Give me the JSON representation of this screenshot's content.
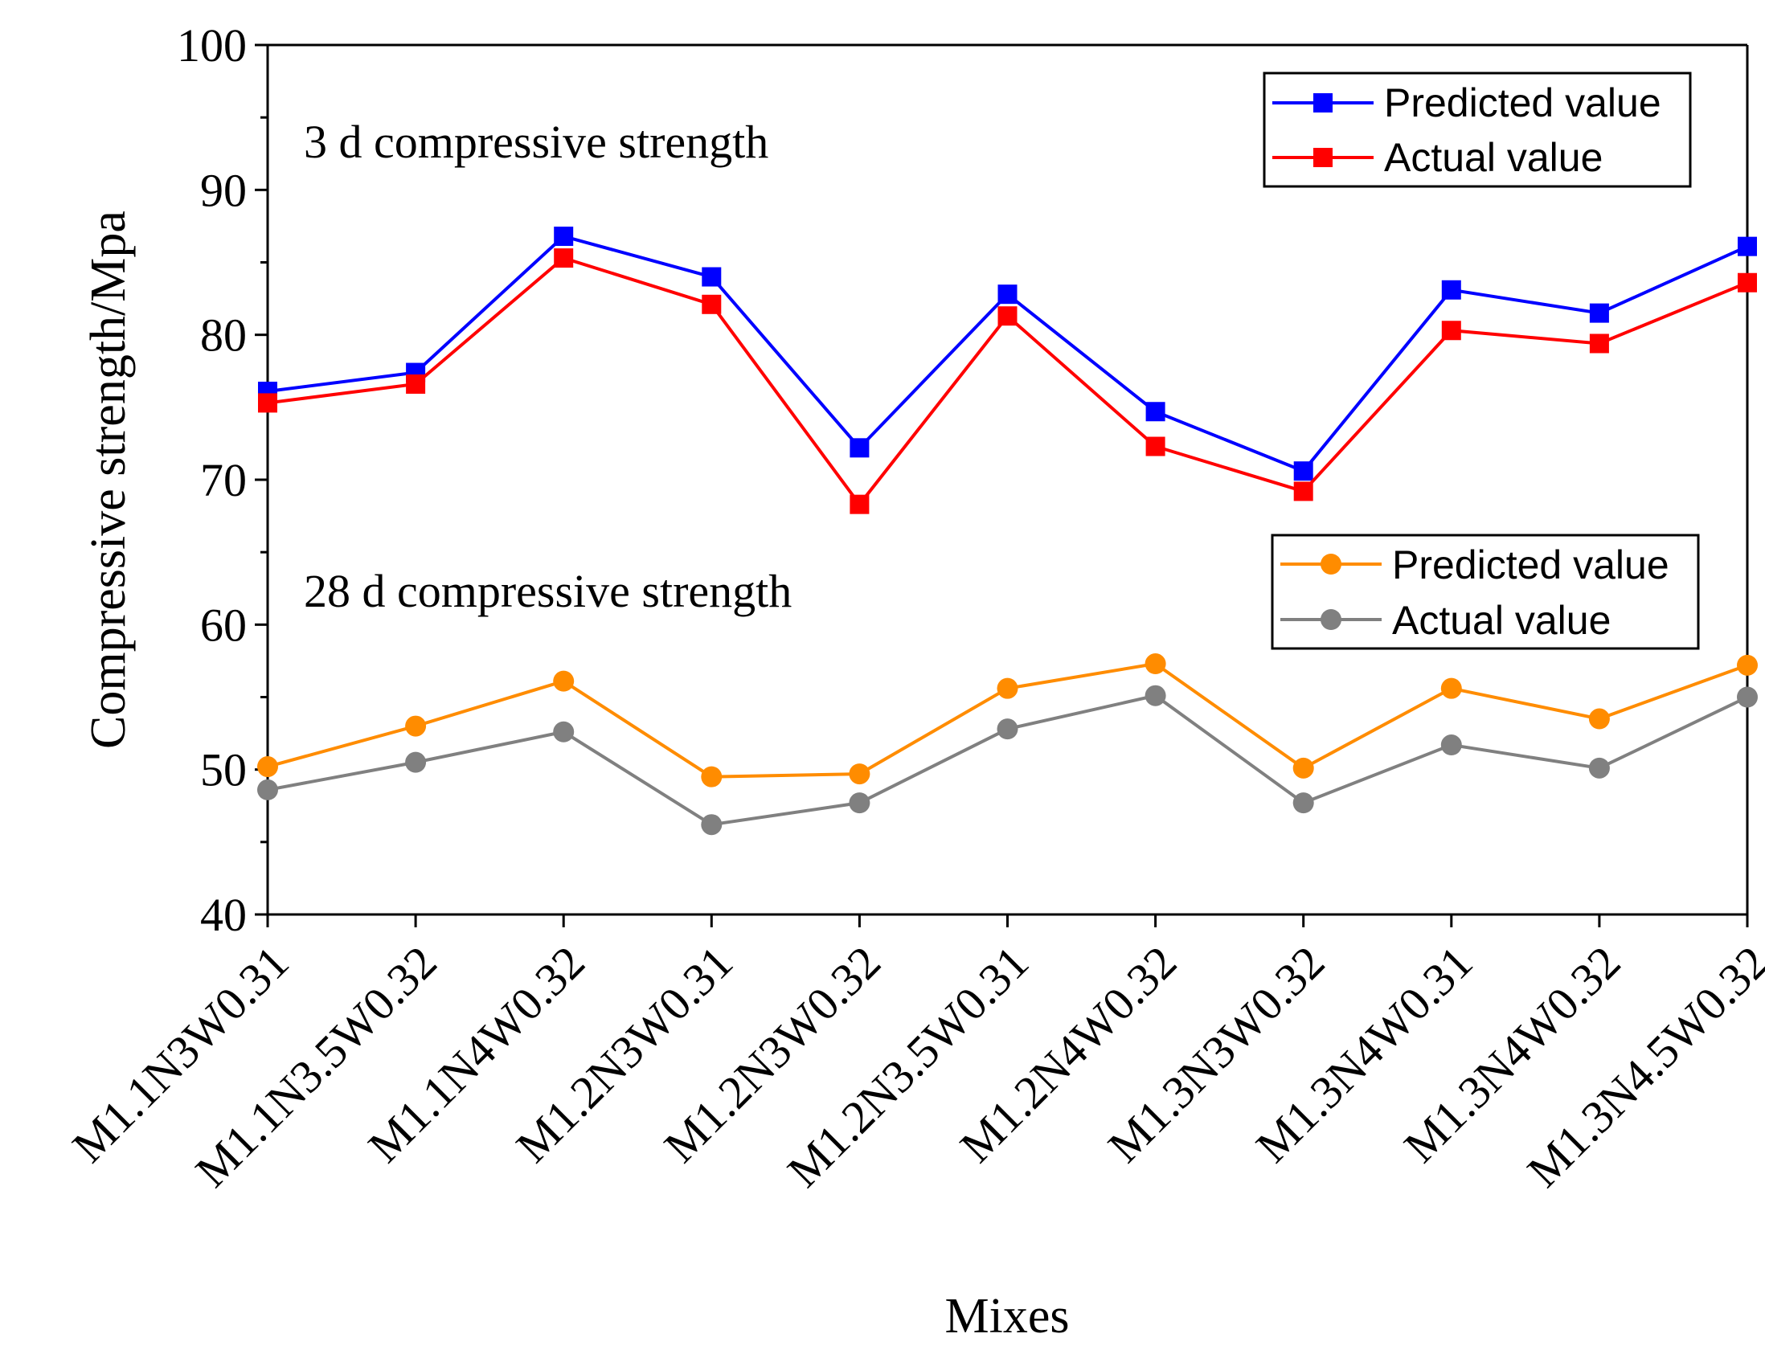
{
  "chart_data": {
    "type": "line",
    "categories": [
      "M1.1N3W0.31",
      "M1.1N3.5W0.32",
      "M1.1N4W0.32",
      "M1.2N3W0.31",
      "M1.2N3W0.32",
      "M1.2N3.5W0.31",
      "M1.2N4W0.32",
      "M1.3N3W0.32",
      "M1.3N4W0.31",
      "M1.3N4W0.32",
      "M1.3N4.5W0.32"
    ],
    "xlabel": "Mixes",
    "ylabel": "Compressive strength/Mpa",
    "ylim": [
      40,
      100
    ],
    "yticks": [
      "40",
      "50",
      "60",
      "70",
      "80",
      "90",
      "100"
    ],
    "grid": false,
    "annotations": {
      "three_day": "3 d compressive strength",
      "twenty_eight_day": "28 d compressive strength"
    },
    "legends": {
      "upper": [
        {
          "label": "Predicted value",
          "color": "#0000ff",
          "marker": "square"
        },
        {
          "label": "Actual value",
          "color": "#ff0000",
          "marker": "square"
        }
      ],
      "lower": [
        {
          "label": "Predicted value",
          "color": "#ff8c00",
          "marker": "circle"
        },
        {
          "label": "Actual value",
          "color": "#808080",
          "marker": "circle"
        }
      ]
    },
    "series": [
      {
        "name": "3 d Predicted value",
        "color": "#0000ff",
        "marker": "square",
        "values": [
          76.1,
          77.4,
          86.8,
          84.0,
          72.2,
          82.8,
          74.7,
          70.6,
          83.1,
          81.5,
          86.1
        ]
      },
      {
        "name": "3 d Actual value",
        "color": "#ff0000",
        "marker": "square",
        "values": [
          75.3,
          76.6,
          85.3,
          82.1,
          68.3,
          81.3,
          72.3,
          69.2,
          80.3,
          79.4,
          83.6
        ]
      },
      {
        "name": "28 d Predicted value",
        "color": "#ff8c00",
        "marker": "circle",
        "values": [
          50.2,
          53.0,
          56.1,
          49.5,
          49.7,
          55.6,
          57.3,
          50.1,
          55.6,
          53.5,
          57.2
        ]
      },
      {
        "name": "28 d Actual value",
        "color": "#808080",
        "marker": "circle",
        "values": [
          48.6,
          50.5,
          52.6,
          46.2,
          47.7,
          52.8,
          55.1,
          47.7,
          51.7,
          50.1,
          55.0
        ]
      }
    ]
  }
}
